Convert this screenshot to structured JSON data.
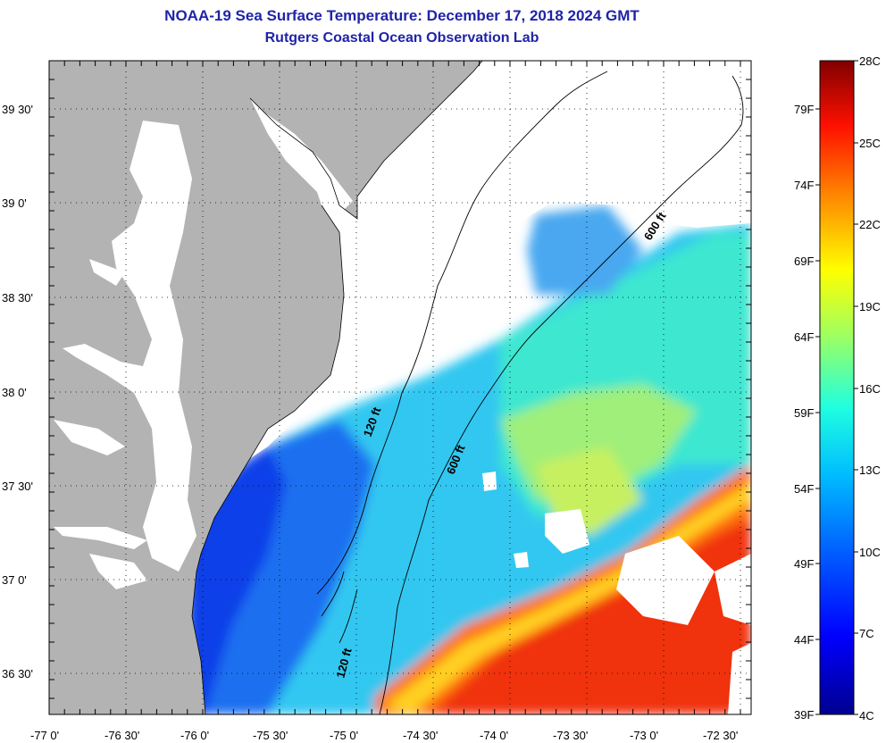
{
  "title": "NOAA-19 Sea Surface Temperature:  December 17, 2018 2024 GMT",
  "subtitle": "Rutgers Coastal Ocean Observation Lab",
  "latitude_labels": [
    "39 30'",
    "39 0'",
    "38 30'",
    "38 0'",
    "37 30'",
    "37 0'",
    "36 30'"
  ],
  "longitude_labels": [
    "-77 0'",
    "-76 30'",
    "-76 0'",
    "-75 30'",
    "-75 0'",
    "-74 30'",
    "-74 0'",
    "-73 30'",
    "-73 0'",
    "-72 30'"
  ],
  "contour_labels": {
    "shelf_120_north": "120 ft",
    "shelf_120_south": "120 ft",
    "slope_600_mid": "600 ft",
    "slope_600_north": "600 ft"
  },
  "colorbar": {
    "fahrenheit_labels": [
      "79F",
      "74F",
      "69F",
      "64F",
      "59F",
      "54F",
      "49F",
      "44F",
      "39F"
    ],
    "celsius_labels": [
      "28C",
      "25C",
      "22C",
      "19C",
      "16C",
      "13C",
      "10C",
      "7C",
      "4C"
    ]
  },
  "colors": {
    "land": "#b3b3b3",
    "cloud_nodata": "#ffffff",
    "title": "#1f24a8"
  }
}
